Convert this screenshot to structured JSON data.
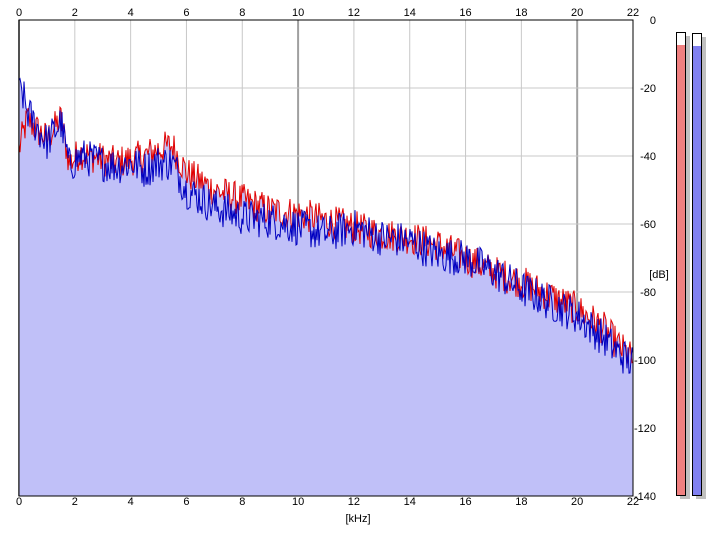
{
  "chart_data": {
    "type": "area",
    "xlabel": "[kHz]",
    "ylabel": "[dB]",
    "xlim": [
      0,
      22
    ],
    "ylim": [
      -140,
      0
    ],
    "x_ticks": [
      "0",
      "2",
      "4",
      "6",
      "8",
      "10",
      "12",
      "14",
      "16",
      "18",
      "20",
      "22"
    ],
    "y_ticks": [
      "0",
      "-20",
      "-40",
      "-60",
      "-80",
      "-100",
      "-120",
      "-140"
    ],
    "grid": true,
    "fill_color": "#c0c0f8",
    "series": [
      {
        "color": "#e00000",
        "x": [
          0.0,
          0.3,
          0.6,
          1.0,
          1.5,
          1.8,
          2.2,
          3.0,
          3.5,
          4.0,
          4.5,
          5.0,
          5.5,
          6.0,
          7.0,
          8.0,
          9.0,
          10.0,
          11.0,
          12.0,
          13.0,
          14.0,
          15.0,
          16.0,
          17.0,
          18.0,
          19.0,
          20.0,
          21.0,
          21.5,
          22.0
        ],
        "values": [
          -38,
          -29,
          -32,
          -35,
          -29,
          -42,
          -39,
          -41,
          -42,
          -41,
          -40,
          -38,
          -37,
          -45,
          -50,
          -53,
          -56,
          -57,
          -59,
          -61,
          -63,
          -64,
          -66,
          -70,
          -74,
          -77,
          -81,
          -85,
          -91,
          -96,
          -100
        ]
      },
      {
        "color": "#0000c0",
        "x": [
          0.0,
          0.1,
          0.3,
          0.6,
          1.0,
          1.5,
          1.8,
          2.2,
          3.0,
          3.5,
          4.0,
          4.5,
          5.0,
          5.5,
          6.0,
          7.0,
          8.0,
          9.0,
          10.0,
          11.0,
          12.0,
          13.0,
          14.0,
          15.0,
          16.0,
          17.0,
          18.0,
          19.0,
          20.0,
          21.0,
          21.5,
          22.0
        ],
        "values": [
          -22,
          -21,
          -27,
          -31,
          -36,
          -30,
          -43,
          -40,
          -42,
          -43,
          -42,
          -44,
          -42,
          -42,
          -50,
          -55,
          -58,
          -59,
          -61,
          -63,
          -61,
          -64,
          -65,
          -69,
          -70,
          -74,
          -79,
          -83,
          -87,
          -94,
          -98,
          -101
        ]
      }
    ],
    "meters": [
      {
        "color": "#f08080",
        "level": 0.97
      },
      {
        "color": "#8080f0",
        "level": 0.97
      }
    ]
  }
}
